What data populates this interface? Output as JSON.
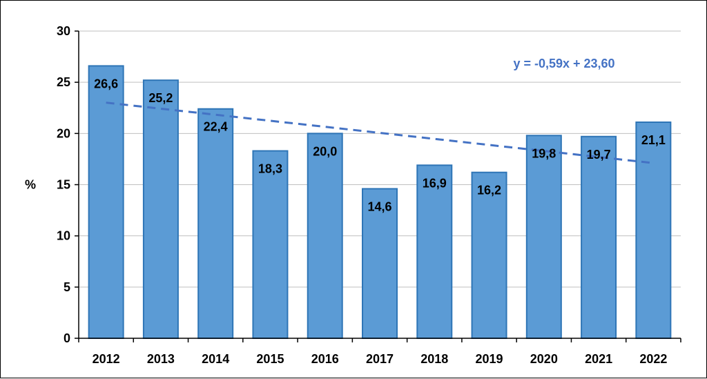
{
  "chart_data": {
    "type": "bar",
    "ylabel": "%",
    "ylim": [
      0,
      30
    ],
    "yticks": [
      0,
      5,
      10,
      15,
      20,
      25,
      30
    ],
    "grid": true,
    "categories": [
      "2012",
      "2013",
      "2014",
      "2015",
      "2016",
      "2017",
      "2018",
      "2019",
      "2020",
      "2021",
      "2022"
    ],
    "values": [
      26.6,
      25.2,
      22.4,
      18.3,
      20.0,
      14.6,
      16.9,
      16.2,
      19.8,
      19.7,
      21.1
    ],
    "data_labels": [
      "26,6",
      "25,2",
      "22,4",
      "18,3",
      "20,0",
      "14,6",
      "16,9",
      "16,2",
      "19,8",
      "19,7",
      "21,1"
    ],
    "trendline": {
      "type": "linear",
      "slope": -0.59,
      "intercept": 23.6,
      "equation": "y = -0,59x + 23,60",
      "style": "dashed"
    },
    "colors": {
      "bar_fill": "#5B9BD5",
      "bar_stroke": "#2E75B6",
      "trend": "#4472C4",
      "grid": "#BFBFBF",
      "axis": "#000000"
    }
  }
}
